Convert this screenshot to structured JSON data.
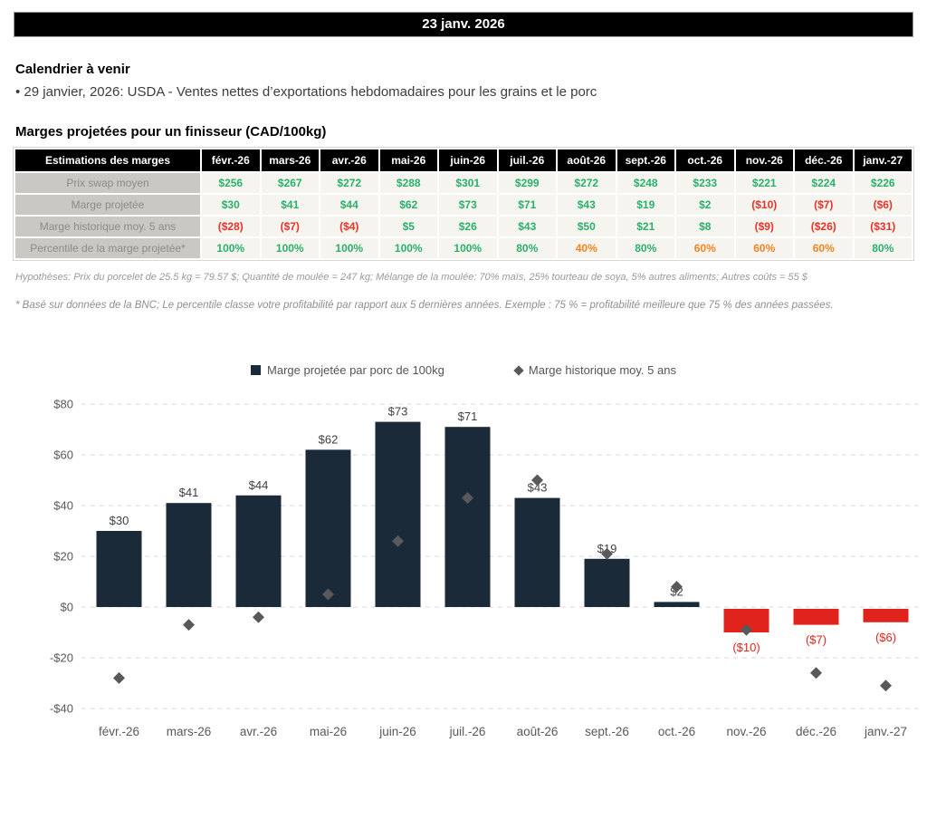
{
  "header": {
    "date_title": "23 janv. 2026"
  },
  "calendar": {
    "title": "Calendrier à venir",
    "items": [
      "• 29 janvier, 2026: USDA - Ventes nettes d’exportations hebdomadaires pour les grains et le porc"
    ]
  },
  "margins_table": {
    "title": "Marges projetées pour un finisseur (CAD/100kg)",
    "header_label": "Estimations des marges",
    "months": [
      "févr.-26",
      "mars-26",
      "avr.-26",
      "mai-26",
      "juin-26",
      "juil.-26",
      "août-26",
      "sept.-26",
      "oct.-26",
      "nov.-26",
      "déc.-26",
      "janv.-27"
    ],
    "rows": [
      {
        "label": "Prix swap moyen",
        "cells": [
          "$256",
          "$267",
          "$272",
          "$288",
          "$301",
          "$299",
          "$272",
          "$248",
          "$233",
          "$221",
          "$224",
          "$226"
        ],
        "colors": [
          "green",
          "green",
          "green",
          "green",
          "green",
          "green",
          "green",
          "green",
          "green",
          "green",
          "green",
          "green"
        ]
      },
      {
        "label": "Marge projetée",
        "cells": [
          "$30",
          "$41",
          "$44",
          "$62",
          "$73",
          "$71",
          "$43",
          "$19",
          "$2",
          "($10)",
          "($7)",
          "($6)"
        ],
        "colors": [
          "green",
          "green",
          "green",
          "green",
          "green",
          "green",
          "green",
          "green",
          "green",
          "red",
          "red",
          "red"
        ]
      },
      {
        "label": "Marge historique moy. 5 ans",
        "cells": [
          "($28)",
          "($7)",
          "($4)",
          "$5",
          "$26",
          "$43",
          "$50",
          "$21",
          "$8",
          "($9)",
          "($26)",
          "($31)"
        ],
        "colors": [
          "red",
          "red",
          "red",
          "green",
          "green",
          "green",
          "green",
          "green",
          "green",
          "red",
          "red",
          "red"
        ]
      },
      {
        "label": "Percentile de la marge projetée*",
        "cells": [
          "100%",
          "100%",
          "100%",
          "100%",
          "100%",
          "80%",
          "40%",
          "80%",
          "60%",
          "60%",
          "60%",
          "80%"
        ],
        "colors": [
          "green",
          "green",
          "green",
          "green",
          "green",
          "green",
          "orange",
          "green",
          "orange",
          "orange",
          "orange",
          "green"
        ]
      }
    ]
  },
  "notes": {
    "hypotheses": "Hypothèses: Prix du porcelet de 25.5 kg = 79.57 $; Quantité de moulée = 247 kg; Mélange de la moulée: 70% maïs, 25% tourteau de soya, 5% autres aliments; Autres coûts = 55 $",
    "footnote": "* Basé sur données de la BNC; Le percentile classe votre profitabilité par rapport aux 5 dernières années. Exemple : 75 % = profitabilité meilleure que 75 % des années passées."
  },
  "chart_data": {
    "type": "bar",
    "categories": [
      "févr.-26",
      "mars-26",
      "avr.-26",
      "mai-26",
      "juin-26",
      "juil.-26",
      "août-26",
      "sept.-26",
      "oct.-26",
      "nov.-26",
      "déc.-26",
      "janv.-27"
    ],
    "series": [
      {
        "name": "Marge projetée par porc de 100kg",
        "type": "bar",
        "values": [
          30,
          41,
          44,
          62,
          73,
          71,
          43,
          19,
          2,
          -10,
          -7,
          -6
        ],
        "labels": [
          "$30",
          "$41",
          "$44",
          "$62",
          "$73",
          "$71",
          "$43",
          "$19",
          "$2",
          "($10)",
          "($7)",
          "($6)"
        ],
        "color_positive": "#1b2a38",
        "color_negative": "#e0231c"
      },
      {
        "name": "Marge historique moy. 5 ans",
        "type": "scatter",
        "values": [
          -28,
          -7,
          -4,
          5,
          26,
          43,
          50,
          21,
          8,
          -9,
          -26,
          -31
        ],
        "color": "#58595b"
      }
    ],
    "ylim": [
      -40,
      80
    ],
    "ytick_values": [
      80,
      60,
      40,
      20,
      0,
      -20,
      -40
    ],
    "ytick_labels": [
      "$80",
      "$60",
      "$40",
      "$20",
      "$0",
      "-$20",
      "-$40"
    ],
    "grid": "horizontal-dashed",
    "legend_position": "top-center"
  },
  "colors": {
    "positive_green": "#2ab06c",
    "negative_red": "#e8332a",
    "warning_orange": "#f5831f",
    "bar_navy": "#1b2a38",
    "bar_red": "#e0231c",
    "diamond_gray": "#58595b"
  }
}
